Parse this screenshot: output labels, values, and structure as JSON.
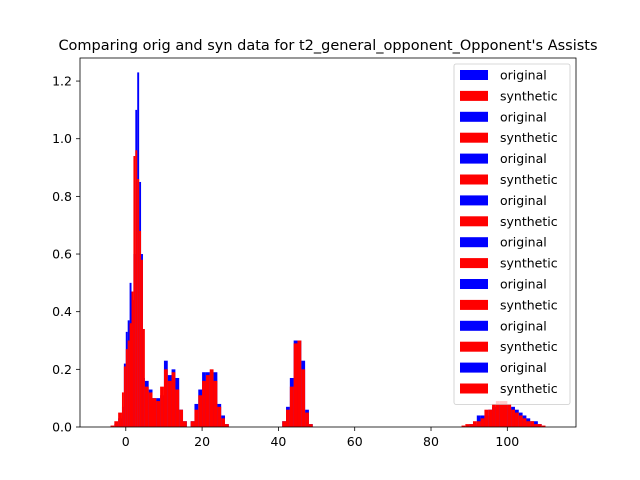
{
  "chart_data": {
    "type": "bar",
    "title": "Comparing orig and syn data for t2_general_opponent_Opponent's Assists",
    "xlabel": "",
    "ylabel": "",
    "xlim": [
      -12,
      118
    ],
    "ylim": [
      0,
      1.28
    ],
    "x_ticks": [
      0,
      20,
      40,
      60,
      80,
      100
    ],
    "y_ticks": [
      0.0,
      0.2,
      0.4,
      0.6,
      0.8,
      1.0,
      1.2
    ],
    "x_tick_labels": [
      "0",
      "20",
      "40",
      "60",
      "80",
      "100"
    ],
    "y_tick_labels": [
      "0.0",
      "0.2",
      "0.4",
      "0.6",
      "0.8",
      "1.0",
      "1.2"
    ],
    "legend_position": "top-right",
    "legend": [
      "original",
      "synthetic",
      "original",
      "synthetic",
      "original",
      "synthetic",
      "original",
      "synthetic",
      "original",
      "synthetic",
      "original",
      "synthetic",
      "original",
      "synthetic",
      "original",
      "synthetic"
    ],
    "colors": {
      "original": "#0000ff",
      "synthetic": "#ff0000"
    },
    "series": [
      {
        "name": "original",
        "color": "#0000ff",
        "bins": [
          [
            -3,
            -2,
            0.01
          ],
          [
            -2,
            -1,
            0.03
          ],
          [
            -1,
            -0.5,
            0.07
          ],
          [
            -0.5,
            0,
            0.22
          ],
          [
            0,
            0.5,
            0.33
          ],
          [
            0.5,
            1,
            0.37
          ],
          [
            1,
            1.5,
            0.5
          ],
          [
            1.5,
            2,
            0.44
          ],
          [
            2,
            2.5,
            0.6
          ],
          [
            2.5,
            3,
            1.1
          ],
          [
            3,
            3.5,
            1.23
          ],
          [
            3.5,
            4,
            0.85
          ],
          [
            4,
            4.5,
            0.6
          ],
          [
            4.5,
            5,
            0.17
          ],
          [
            5,
            6,
            0.16
          ],
          [
            6,
            7,
            0.13
          ],
          [
            7,
            8,
            0.1
          ],
          [
            8,
            9,
            0.1
          ],
          [
            9,
            10,
            0.11
          ],
          [
            10,
            11,
            0.23
          ],
          [
            11,
            12,
            0.18
          ],
          [
            12,
            13,
            0.2
          ],
          [
            13,
            14,
            0.17
          ],
          [
            14,
            15,
            0.06
          ],
          [
            15,
            16,
            0.02
          ],
          [
            17,
            18,
            0.02
          ],
          [
            18,
            19,
            0.08
          ],
          [
            19,
            20,
            0.13
          ],
          [
            20,
            21,
            0.19
          ],
          [
            21,
            22,
            0.19
          ],
          [
            22,
            23,
            0.19
          ],
          [
            23,
            24,
            0.19
          ],
          [
            24,
            25,
            0.08
          ],
          [
            25,
            26,
            0.04
          ],
          [
            26,
            27,
            0.01
          ],
          [
            41,
            42,
            0.02
          ],
          [
            42,
            43,
            0.07
          ],
          [
            43,
            44,
            0.17
          ],
          [
            44,
            45,
            0.3
          ],
          [
            45,
            46,
            0.3
          ],
          [
            46,
            47,
            0.23
          ],
          [
            47,
            48,
            0.06
          ],
          [
            48,
            49,
            0.01
          ],
          [
            90,
            91,
            0.01
          ],
          [
            91,
            92,
            0.01
          ],
          [
            92,
            93,
            0.04
          ],
          [
            93,
            94,
            0.04
          ],
          [
            94,
            95,
            0.04
          ],
          [
            95,
            96,
            0.06
          ],
          [
            96,
            97,
            0.07
          ],
          [
            97,
            98,
            0.08
          ],
          [
            98,
            99,
            0.08
          ],
          [
            99,
            100,
            0.08
          ],
          [
            100,
            101,
            0.07
          ],
          [
            101,
            102,
            0.07
          ],
          [
            102,
            103,
            0.06
          ],
          [
            103,
            104,
            0.05
          ],
          [
            104,
            105,
            0.04
          ],
          [
            105,
            106,
            0.03
          ],
          [
            106,
            107,
            0.02
          ],
          [
            107,
            108,
            0.02
          ],
          [
            108,
            109,
            0.01
          ]
        ]
      },
      {
        "name": "synthetic",
        "color": "#ff0000",
        "bins": [
          [
            -4,
            -3,
            0.005
          ],
          [
            -3,
            -2,
            0.02
          ],
          [
            -2,
            -1,
            0.05
          ],
          [
            -1,
            -0.5,
            0.12
          ],
          [
            -0.5,
            0,
            0.21
          ],
          [
            0,
            0.5,
            0.27
          ],
          [
            0.5,
            1,
            0.3
          ],
          [
            1,
            1.5,
            0.36
          ],
          [
            1.5,
            2,
            0.47
          ],
          [
            2,
            2.5,
            0.94
          ],
          [
            2.5,
            3,
            0.96
          ],
          [
            3,
            3.5,
            0.86
          ],
          [
            3.5,
            4,
            0.68
          ],
          [
            4,
            4.5,
            0.58
          ],
          [
            4.5,
            5,
            0.34
          ],
          [
            5,
            6,
            0.14
          ],
          [
            6,
            7,
            0.12
          ],
          [
            7,
            8,
            0.1
          ],
          [
            8,
            9,
            0.09
          ],
          [
            9,
            10,
            0.14
          ],
          [
            10,
            11,
            0.2
          ],
          [
            11,
            12,
            0.16
          ],
          [
            12,
            13,
            0.19
          ],
          [
            13,
            14,
            0.13
          ],
          [
            14,
            15,
            0.06
          ],
          [
            15,
            16,
            0.02
          ],
          [
            17,
            18,
            0.02
          ],
          [
            18,
            19,
            0.06
          ],
          [
            19,
            20,
            0.11
          ],
          [
            20,
            21,
            0.16
          ],
          [
            21,
            22,
            0.18
          ],
          [
            22,
            23,
            0.2
          ],
          [
            23,
            24,
            0.16
          ],
          [
            24,
            25,
            0.07
          ],
          [
            25,
            26,
            0.03
          ],
          [
            26,
            27,
            0.01
          ],
          [
            41,
            42,
            0.02
          ],
          [
            42,
            43,
            0.06
          ],
          [
            43,
            44,
            0.14
          ],
          [
            44,
            45,
            0.29
          ],
          [
            45,
            46,
            0.3
          ],
          [
            46,
            47,
            0.2
          ],
          [
            47,
            48,
            0.05
          ],
          [
            48,
            49,
            0.01
          ],
          [
            88,
            89,
            0.005
          ],
          [
            89,
            90,
            0.01
          ],
          [
            90,
            91,
            0.01
          ],
          [
            91,
            92,
            0.02
          ],
          [
            92,
            93,
            0.02
          ],
          [
            93,
            94,
            0.03
          ],
          [
            94,
            95,
            0.06
          ],
          [
            95,
            96,
            0.06
          ],
          [
            96,
            97,
            0.08
          ],
          [
            97,
            98,
            0.09
          ],
          [
            98,
            99,
            0.09
          ],
          [
            99,
            100,
            0.09
          ],
          [
            100,
            101,
            0.08
          ],
          [
            101,
            102,
            0.06
          ],
          [
            102,
            103,
            0.05
          ],
          [
            103,
            104,
            0.04
          ],
          [
            104,
            105,
            0.03
          ],
          [
            105,
            106,
            0.02
          ],
          [
            106,
            107,
            0.02
          ],
          [
            107,
            108,
            0.01
          ],
          [
            108,
            109,
            0.01
          ],
          [
            109,
            110,
            0.005
          ]
        ]
      }
    ]
  }
}
